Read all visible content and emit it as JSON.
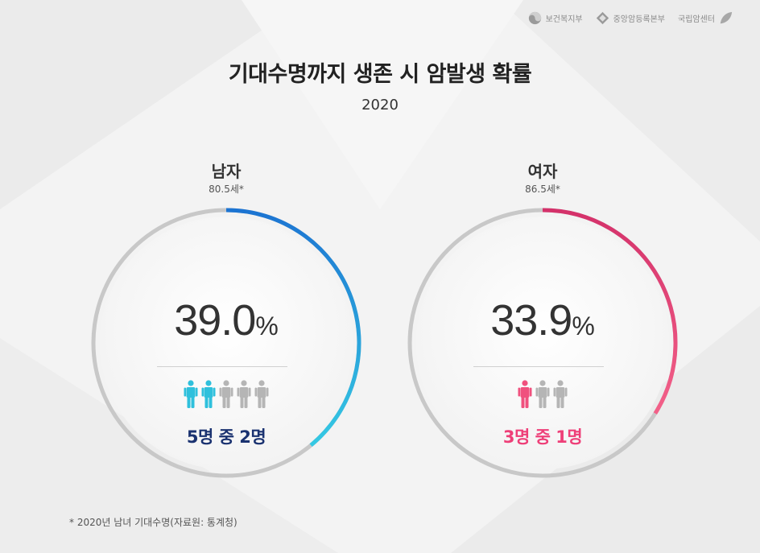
{
  "logos": [
    {
      "name": "보건복지부",
      "icon": "taegeuk-icon"
    },
    {
      "name": "중앙암등록본부",
      "icon": "diamond-icon"
    },
    {
      "name": "국립암센터",
      "icon": "leaf-icon"
    }
  ],
  "chart_data": {
    "type": "pie",
    "title": "기대수명까지 생존 시 암발생 확률",
    "subtitle": "2020",
    "footnote": "* 2020년 남녀 기대수명(자료원: 통계청)",
    "series": [
      {
        "name": "남자",
        "age_label": "80.5세*",
        "value": 39.0,
        "value_text": "39.0",
        "unit": "%",
        "people_total": 5,
        "people_highlighted": 2,
        "ratio_text": "5명 중 2명",
        "colors": {
          "start": "#1c74d2",
          "end": "#35c9e3",
          "person": "#2fc0dc"
        }
      },
      {
        "name": "여자",
        "age_label": "86.5세*",
        "value": 33.9,
        "value_text": "33.9",
        "unit": "%",
        "people_total": 3,
        "people_highlighted": 1,
        "ratio_text": "3명 중 1명",
        "colors": {
          "start": "#d4316a",
          "end": "#f36189",
          "person": "#f0517e"
        }
      }
    ],
    "track_color": "#c8c8c8",
    "inactive_person_color": "#b5b5b5"
  }
}
